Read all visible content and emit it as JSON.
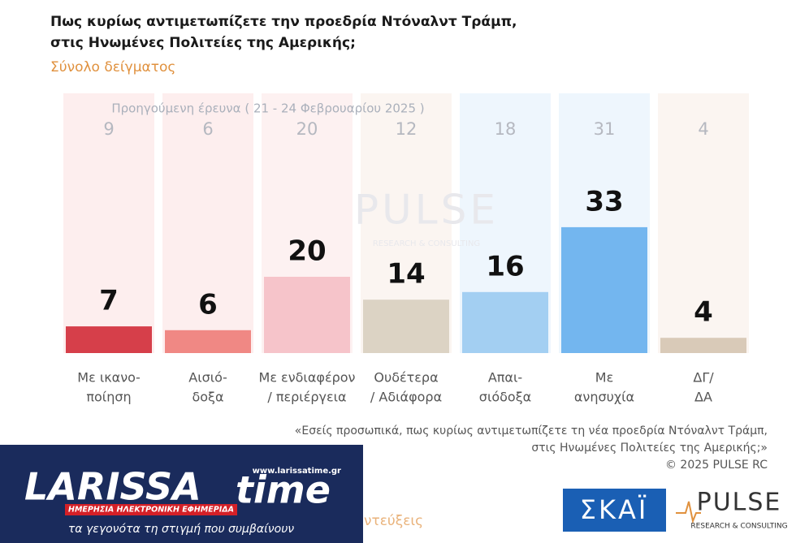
{
  "chart_data": {
    "type": "bar",
    "title": [
      "Πως κυρίως αντιμετωπίζετε την προεδρία Ντόναλντ Τράμπ,",
      "στις Ηνωμένες Πολιτείες της Αμερικής;"
    ],
    "subtitle": "Σύνολο δείγματος",
    "categories": [
      [
        "Με ικανο-",
        "ποίηση"
      ],
      [
        "Αισιό-",
        "δοξα"
      ],
      [
        "Με ενδιαφέρον",
        "/ περιέργεια"
      ],
      [
        "Ουδέτερα",
        "/ Αδιάφορα"
      ],
      [
        "Απαι-",
        "σιόδοξα"
      ],
      [
        "Με",
        "ανησυχία"
      ],
      [
        "ΔΓ/",
        "ΔΑ"
      ]
    ],
    "values": [
      7,
      6,
      20,
      14,
      16,
      33,
      4
    ],
    "colors": [
      "#d63f4a",
      "#f08884",
      "#f6c4ca",
      "#dcd3c4",
      "#a3cff2",
      "#73b6ef",
      "#d9cab8"
    ],
    "background_colors": [
      "#fdeeee",
      "#fdeeee",
      "#fdf1f1",
      "#fbf5f1",
      "#eef6fd",
      "#eef6fd",
      "#fbf5f1"
    ],
    "previous": {
      "name": "Προηγούμενη έρευνα ( 21 - 24 Φεβρουαρίου 2025 )",
      "values": [
        9,
        6,
        20,
        12,
        18,
        31,
        4
      ]
    },
    "footnote": [
      "«Εσείς προσωπικά, πως κυρίως αντιμετωπίζετε τη νέα προεδρία Ντόναλντ Τράμπ,",
      "στις Ηνωμένες Πολιτείες της Αμερικής;»",
      "©  2025  PULSE RC"
    ]
  },
  "watermark": {
    "name": "PULSE",
    "sub": "RESEARCH & CONSULTING"
  },
  "skai": "ΣΚΑΪ",
  "pulse_logo": {
    "name": "PULSE",
    "sub": "RESEARCH & CONSULTING"
  },
  "larissa": {
    "name": "LARISSA",
    "time": "time",
    "url": "www.larissatime.gr",
    "tag": "ΗΜΕΡΗΣΙΑ ΗΛΕΚΤΡΟΝΙΚΗ ΕΦΗΜΕΡΙΔΑ",
    "slogan": "τα γεγονότα τη στιγμή που συμβαίνουν"
  },
  "partial": "ντεύξεις"
}
